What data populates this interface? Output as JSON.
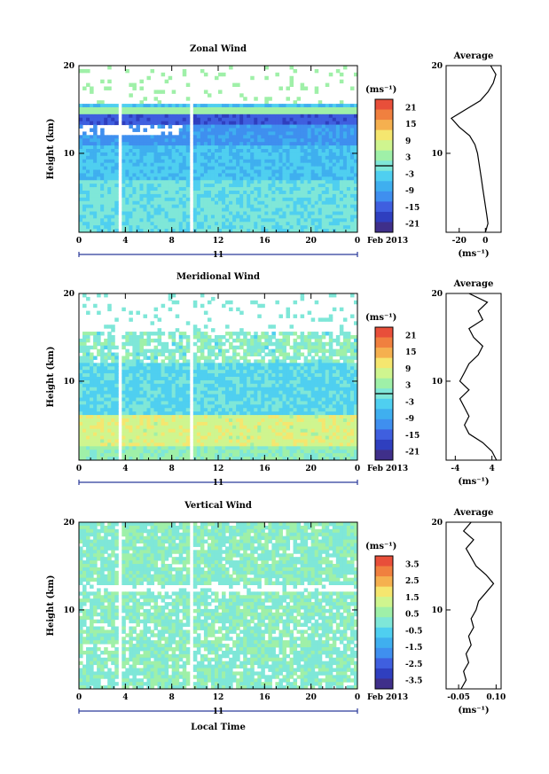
{
  "date_label": "Feb 2013",
  "day_label": "11",
  "x_axis_label": "Local Time",
  "y_axis_label": "Height (km)",
  "unit_label": "(ms⁻¹)",
  "average_title": "Average",
  "colors": {
    "white_gap": "#ffffff",
    "scale": [
      "#3f2f8a",
      "#2f3fbf",
      "#3f5fdf",
      "#3f8fef",
      "#3fafef",
      "#4fcff0",
      "#7fe7d8",
      "#9ff0a8",
      "#cff58f",
      "#f5e66f",
      "#f5b04f",
      "#f0803f",
      "#e84f3a"
    ]
  },
  "chart_data": [
    {
      "type": "heatmap",
      "title": "Zonal Wind",
      "x_ticks": [
        "0",
        "4",
        "8",
        "12",
        "16",
        "20",
        "0"
      ],
      "y_ticks": [
        "20",
        "10"
      ],
      "xlim": [
        0,
        24
      ],
      "ylim": [
        1,
        20
      ],
      "colorbar": {
        "ticks": [
          "21",
          "15",
          "9",
          "3",
          "-3",
          "-9",
          "-15",
          "-21"
        ],
        "range": [
          -24,
          24
        ]
      },
      "profile": {
        "title": "Average",
        "x_ticks": [
          "-20",
          "0"
        ],
        "xlim": [
          -30,
          12
        ],
        "points": [
          [
            0,
            1
          ],
          [
            2,
            2
          ],
          [
            1,
            3
          ],
          [
            0,
            4
          ],
          [
            -1,
            5
          ],
          [
            -2,
            6
          ],
          [
            -3,
            7
          ],
          [
            -4,
            8
          ],
          [
            -5,
            9
          ],
          [
            -6,
            10
          ],
          [
            -8,
            11
          ],
          [
            -12,
            12
          ],
          [
            -20,
            13
          ],
          [
            -26,
            14
          ],
          [
            -15,
            15
          ],
          [
            -4,
            16
          ],
          [
            2,
            17
          ],
          [
            6,
            18
          ],
          [
            8,
            19
          ],
          [
            4,
            20
          ]
        ]
      }
    },
    {
      "type": "heatmap",
      "title": "Meridional Wind",
      "x_ticks": [
        "0",
        "4",
        "8",
        "12",
        "16",
        "20",
        "0"
      ],
      "y_ticks": [
        "20",
        "10"
      ],
      "xlim": [
        0,
        24
      ],
      "ylim": [
        1,
        20
      ],
      "colorbar": {
        "ticks": [
          "21",
          "15",
          "9",
          "3",
          "-3",
          "-9",
          "-15",
          "-21"
        ],
        "range": [
          -24,
          24
        ]
      },
      "profile": {
        "title": "Average",
        "x_ticks": [
          "-4",
          "4"
        ],
        "xlim": [
          -6,
          6
        ],
        "points": [
          [
            5,
            1
          ],
          [
            4,
            2
          ],
          [
            2,
            3
          ],
          [
            -1,
            4
          ],
          [
            -2,
            5
          ],
          [
            -1,
            6
          ],
          [
            -2,
            7
          ],
          [
            -3,
            8
          ],
          [
            -1,
            9
          ],
          [
            -3,
            10
          ],
          [
            -2,
            11
          ],
          [
            -1,
            12
          ],
          [
            1,
            13
          ],
          [
            2,
            14
          ],
          [
            0,
            15
          ],
          [
            -1,
            16
          ],
          [
            2,
            17
          ],
          [
            1,
            18
          ],
          [
            3,
            19
          ],
          [
            -1,
            20
          ]
        ]
      }
    },
    {
      "type": "heatmap",
      "title": "Vertical Wind",
      "x_ticks": [
        "0",
        "4",
        "8",
        "12",
        "16",
        "20",
        "0"
      ],
      "y_ticks": [
        "20",
        "10"
      ],
      "xlim": [
        0,
        24
      ],
      "ylim": [
        1,
        20
      ],
      "colorbar": {
        "ticks": [
          "3.5",
          "2.5",
          "1.5",
          "0.5",
          "-0.5",
          "-1.5",
          "-2.5",
          "-3.5"
        ],
        "range": [
          -4,
          4
        ]
      },
      "profile": {
        "title": "Average",
        "x_ticks": [
          "-0.05",
          "0.10"
        ],
        "xlim": [
          -0.1,
          0.12
        ],
        "points": [
          [
            -0.04,
            1
          ],
          [
            -0.02,
            2
          ],
          [
            -0.03,
            3
          ],
          [
            -0.01,
            4
          ],
          [
            -0.02,
            5
          ],
          [
            0.0,
            6
          ],
          [
            -0.01,
            7
          ],
          [
            0.01,
            8
          ],
          [
            0.0,
            9
          ],
          [
            0.02,
            10
          ],
          [
            0.03,
            11
          ],
          [
            0.06,
            12
          ],
          [
            0.09,
            13
          ],
          [
            0.06,
            14
          ],
          [
            0.02,
            15
          ],
          [
            0.0,
            16
          ],
          [
            -0.02,
            17
          ],
          [
            0.01,
            18
          ],
          [
            -0.03,
            19
          ],
          [
            0.0,
            20
          ]
        ]
      }
    }
  ]
}
